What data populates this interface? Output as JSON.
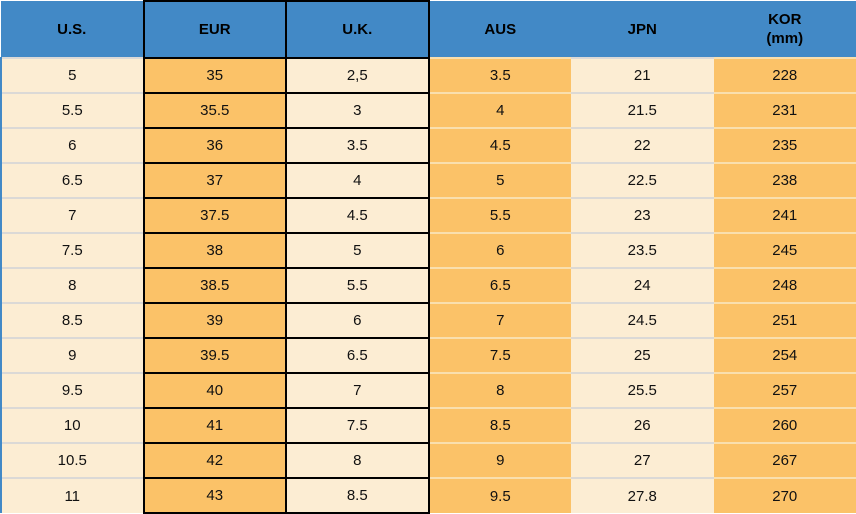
{
  "header": {
    "columns": [
      {
        "label": "U.S."
      },
      {
        "label": "EUR"
      },
      {
        "label": "U.K."
      },
      {
        "label": "AUS"
      },
      {
        "label": "JPN"
      },
      {
        "label": "KOR",
        "sublabel": "(mm)"
      }
    ]
  },
  "chart_data": {
    "type": "table",
    "title": "Shoe size conversion table",
    "columns": [
      "U.S.",
      "EUR",
      "U.K.",
      "AUS",
      "JPN",
      "KOR (mm)"
    ],
    "rows": [
      [
        "5",
        "35",
        "2,5",
        "3.5",
        "21",
        "228"
      ],
      [
        "5.5",
        "35.5",
        "3",
        "4",
        "21.5",
        "231"
      ],
      [
        "6",
        "36",
        "3.5",
        "4.5",
        "22",
        "235"
      ],
      [
        "6.5",
        "37",
        "4",
        "5",
        "22.5",
        "238"
      ],
      [
        "7",
        "37.5",
        "4.5",
        "5.5",
        "23",
        "241"
      ],
      [
        "7.5",
        "38",
        "5",
        "6",
        "23.5",
        "245"
      ],
      [
        "8",
        "38.5",
        "5.5",
        "6.5",
        "24",
        "248"
      ],
      [
        "8.5",
        "39",
        "6",
        "7",
        "24.5",
        "251"
      ],
      [
        "9",
        "39.5",
        "6.5",
        "7.5",
        "25",
        "254"
      ],
      [
        "9.5",
        "40",
        "7",
        "8",
        "25.5",
        "257"
      ],
      [
        "10",
        "41",
        "7.5",
        "8.5",
        "26",
        "260"
      ],
      [
        "10.5",
        "42",
        "8",
        "9",
        "27",
        "267"
      ],
      [
        "11",
        "43",
        "8.5",
        "9.5",
        "27.8",
        "270"
      ]
    ]
  },
  "colors": {
    "header_bg": "#4289C6",
    "orange_cell": "#FBC268",
    "cream_cell": "#FCEDD3",
    "boxed_border": "#000000"
  }
}
